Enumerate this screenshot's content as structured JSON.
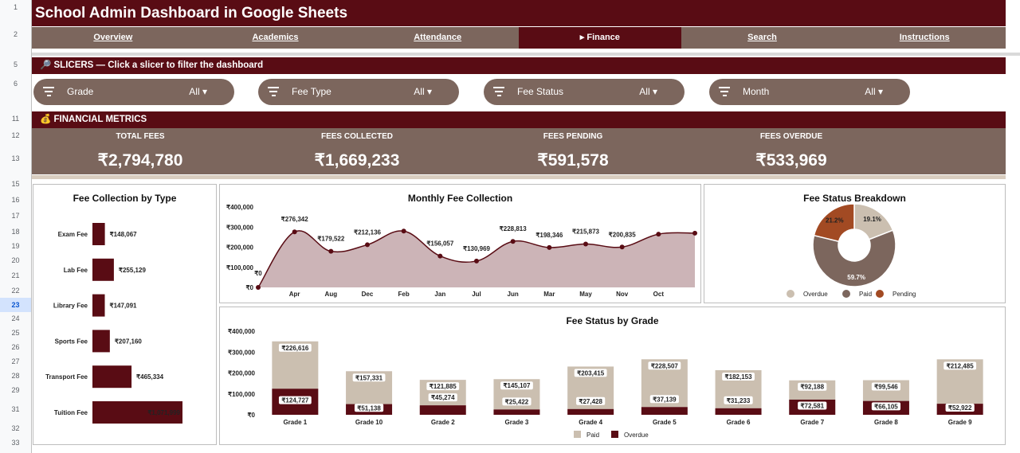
{
  "title": "School Admin Dashboard in Google Sheets",
  "nav": [
    "Overview",
    "Academics",
    "Attendance",
    "▸ Finance",
    "Search",
    "Instructions"
  ],
  "row_numbers": [
    "1",
    "2",
    "5",
    "6",
    "11",
    "12",
    "13",
    "15",
    "16",
    "17",
    "18",
    "19",
    "20",
    "21",
    "22",
    "23",
    "24",
    "25",
    "26",
    "27",
    "28",
    "29",
    "31",
    "32",
    "33"
  ],
  "slicers": {
    "header": "🔎 SLICERS — Click a slicer to filter the dashboard",
    "items": [
      {
        "label": "Grade",
        "value": "All ▾"
      },
      {
        "label": "Fee Type",
        "value": "All ▾"
      },
      {
        "label": "Fee Status",
        "value": "All ▾"
      },
      {
        "label": "Month",
        "value": "All ▾"
      }
    ]
  },
  "metrics": {
    "header": "💰 FINANCIAL METRICS",
    "items": [
      {
        "label": "TOTAL FEES",
        "value": "₹2,794,780"
      },
      {
        "label": "FEES COLLECTED",
        "value": "₹1,669,233"
      },
      {
        "label": "FEES PENDING",
        "value": "₹591,578"
      },
      {
        "label": "FEES OVERDUE",
        "value": "₹533,969"
      }
    ]
  },
  "chart_data": [
    {
      "type": "bar",
      "title": "Fee Collection by Type",
      "orientation": "horizontal",
      "categories": [
        "Exam Fee",
        "Lab Fee",
        "Library Fee",
        "Sports Fee",
        "Transport Fee",
        "Tuition Fee"
      ],
      "values": [
        148067,
        255129,
        147091,
        207160,
        465334,
        1071999
      ],
      "labels": [
        "₹148,067",
        "₹255,129",
        "₹147,091",
        "₹207,160",
        "₹465,334",
        "₹1,071,999"
      ],
      "color": "#590c14"
    },
    {
      "type": "area",
      "title": "Monthly Fee Collection",
      "categories": [
        "",
        "Apr",
        "Aug",
        "Dec",
        "Feb",
        "Jan",
        "Jul",
        "Jun",
        "Mar",
        "May",
        "Nov",
        "Oct",
        ""
      ],
      "values": [
        0,
        276342,
        179522,
        212136,
        280000,
        156057,
        130969,
        228813,
        198346,
        215873,
        200835,
        265000,
        270000
      ],
      "labels": [
        "₹0",
        "₹276,342",
        "₹179,522",
        "₹212,136",
        "",
        "₹156,057",
        "₹130,969",
        "₹228,813",
        "₹198,346",
        "₹215,873",
        "₹200,835",
        "",
        ""
      ],
      "y_ticks": [
        "₹0",
        "₹100,000",
        "₹200,000",
        "₹300,000",
        "₹400,000"
      ],
      "ylim": [
        0,
        400000
      ],
      "fill": "#ccb4b7",
      "line": "#590c14"
    },
    {
      "type": "pie",
      "title": "Fee Status Breakdown",
      "donut": true,
      "categories": [
        "Overdue",
        "Paid",
        "Pending"
      ],
      "values": [
        19.1,
        59.7,
        21.2
      ],
      "labels": [
        "19.1%",
        "59.7%",
        "21.2%"
      ],
      "colors": [
        "#cbbfb0",
        "#7c665d",
        "#a24a23"
      ],
      "legend": "bottom"
    },
    {
      "type": "bar",
      "stacked": true,
      "title": "Fee Status by Grade",
      "categories": [
        "Grade 1",
        "Grade 10",
        "Grade 2",
        "Grade 3",
        "Grade 4",
        "Grade 5",
        "Grade 6",
        "Grade 7",
        "Grade 8",
        "Grade 9"
      ],
      "series": [
        {
          "name": "Overdue",
          "values": [
            124727,
            51138,
            45274,
            25422,
            27428,
            37139,
            31233,
            72581,
            66105,
            52922
          ],
          "labels": [
            "₹124,727",
            "₹51,138",
            "₹45,274",
            "₹25,422",
            "₹27,428",
            "₹37,139",
            "₹31,233",
            "₹72,581",
            "₹66,105",
            "₹52,922"
          ],
          "color": "#590c14"
        },
        {
          "name": "Paid",
          "values": [
            226616,
            157331,
            121885,
            145107,
            203415,
            228507,
            182153,
            92188,
            99546,
            212485
          ],
          "labels": [
            "₹226,616",
            "₹157,331",
            "₹121,885",
            "₹145,107",
            "₹203,415",
            "₹228,507",
            "₹182,153",
            "₹92,188",
            "₹99,546",
            "₹212,485"
          ],
          "color": "#cbbfb0"
        }
      ],
      "y_ticks": [
        "₹0",
        "₹100,000",
        "₹200,000",
        "₹300,000",
        "₹400,000"
      ],
      "ylim": [
        0,
        400000
      ],
      "legend": "bottom"
    }
  ]
}
